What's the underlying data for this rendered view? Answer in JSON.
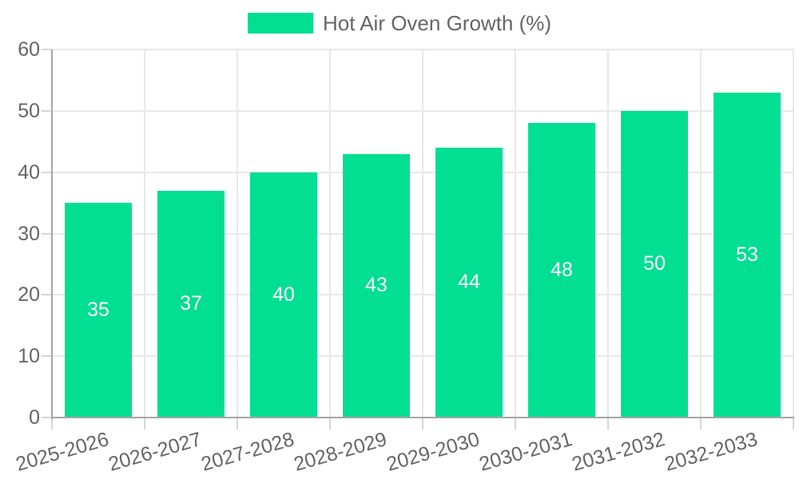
{
  "chart_data": {
    "type": "bar",
    "title": "",
    "categories": [
      "2025-2026",
      "2026-2027",
      "2027-2028",
      "2028-2029",
      "2029-2030",
      "2030-2031",
      "2031-2032",
      "2032-2033"
    ],
    "series": [
      {
        "name": "Hot Air Oven Growth (%)",
        "values": [
          35,
          37,
          40,
          43,
          44,
          48,
          50,
          53
        ]
      }
    ],
    "ylabel": "",
    "xlabel": "",
    "ylim": [
      0,
      60
    ],
    "y_ticks": [
      0,
      10,
      20,
      30,
      40,
      50,
      60
    ],
    "grid": true,
    "legend_position": "top-center",
    "x_label_rotation_deg": -16,
    "value_label_position": "inside-center"
  },
  "legend": {
    "label": "Hot Air Oven Growth (%)"
  },
  "colors": {
    "bar": "#02DE92",
    "axis_text": "#666666",
    "value_label_text": "#FFFFFF",
    "axis_line": "#A6A6A6",
    "gridline": "#E8E8E8",
    "tick": "#D6D6D6",
    "background": "#FFFFFF"
  }
}
